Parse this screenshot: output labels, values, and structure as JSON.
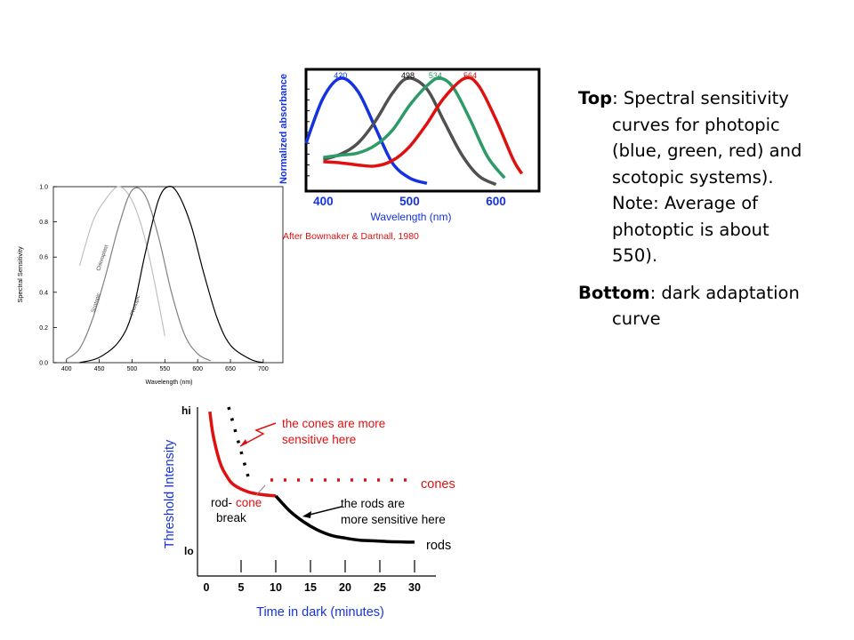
{
  "notes": {
    "top_heading": "Top",
    "top_text": ": Spectral sensitivity curves for photopic (blue, green, red) and scotopic systems). Note: Average of photoptic is about 550).",
    "bottom_heading": "Bottom",
    "bottom_text": ": dark adaptation curve"
  },
  "colors": {
    "blue": "#1432e0",
    "green": "#2e9a68",
    "red": "#e01010",
    "gray": "#505050"
  },
  "chart_data": [
    {
      "type": "line",
      "ylabel": "Normalized absorbance",
      "xlabel": "Wavelength (nm)",
      "xlim": [
        380,
        650
      ],
      "ylim": [
        0,
        1
      ],
      "xticks": [
        "400",
        "500",
        "600"
      ],
      "credit": "After Bowmaker & Dartnall, 1980",
      "series": [
        {
          "name": "420",
          "color": "#1432e0",
          "x": [
            380,
            400,
            420,
            440,
            460,
            480,
            500,
            520
          ],
          "y": [
            0.4,
            0.82,
            1.0,
            0.88,
            0.55,
            0.22,
            0.08,
            0.03
          ]
        },
        {
          "name": "498",
          "color": "#505050",
          "x": [
            400,
            420,
            440,
            460,
            480,
            498,
            520,
            540,
            560,
            580,
            600
          ],
          "y": [
            0.25,
            0.3,
            0.4,
            0.6,
            0.86,
            1.0,
            0.9,
            0.6,
            0.3,
            0.1,
            0.02
          ]
        },
        {
          "name": "534",
          "color": "#2e9a68",
          "x": [
            400,
            420,
            440,
            460,
            480,
            500,
            520,
            534,
            550,
            570,
            590,
            610
          ],
          "y": [
            0.27,
            0.29,
            0.31,
            0.38,
            0.52,
            0.75,
            0.93,
            1.0,
            0.92,
            0.62,
            0.28,
            0.08
          ]
        },
        {
          "name": "564",
          "color": "#e01010",
          "x": [
            400,
            420,
            440,
            460,
            480,
            500,
            520,
            540,
            564,
            580,
            600,
            620,
            630
          ],
          "y": [
            0.23,
            0.22,
            0.2,
            0.19,
            0.24,
            0.37,
            0.58,
            0.82,
            1.0,
            0.93,
            0.62,
            0.25,
            0.12
          ]
        }
      ]
    },
    {
      "type": "line",
      "ylabel": "Spectral Sensitivity",
      "xlabel": "Wavelength (nm)",
      "xlim": [
        380,
        730
      ],
      "ylim": [
        0,
        1
      ],
      "xticks": [
        "400",
        "450",
        "500",
        "550",
        "600",
        "650",
        "700"
      ],
      "yticks": [
        "0.0",
        "0.2",
        "0.4",
        "0.6",
        "0.8",
        "1.0"
      ],
      "series": [
        {
          "name": "Chloroplast",
          "color": "#c0c0c0",
          "x": [
            420,
            440,
            460,
            480,
            500,
            520,
            540,
            550
          ],
          "y": [
            0.55,
            0.8,
            0.93,
            1.0,
            0.92,
            0.7,
            0.35,
            0.15
          ]
        },
        {
          "name": "Scotopic",
          "color": "#808080",
          "x": [
            400,
            420,
            440,
            460,
            480,
            500,
            520,
            540,
            560,
            580,
            600,
            620
          ],
          "y": [
            0.02,
            0.08,
            0.25,
            0.5,
            0.78,
            0.98,
            0.95,
            0.72,
            0.4,
            0.16,
            0.05,
            0.01
          ]
        },
        {
          "name": "Photopic",
          "color": "#000000",
          "x": [
            420,
            450,
            480,
            500,
            520,
            540,
            555,
            570,
            590,
            610,
            630,
            650,
            680,
            700
          ],
          "y": [
            0.0,
            0.03,
            0.12,
            0.28,
            0.62,
            0.92,
            1.0,
            0.96,
            0.78,
            0.5,
            0.25,
            0.1,
            0.02,
            0.0
          ]
        }
      ]
    },
    {
      "type": "line",
      "ylabel": "Threshold Intensity",
      "xlabel": "Time in dark (minutes)",
      "xticks": [
        "0",
        "5",
        "10",
        "15",
        "20",
        "25",
        "30"
      ],
      "ytick_hi": "hi",
      "ytick_lo": "lo",
      "annotations": {
        "cones_sensitive": "the cones are more sensitive here",
        "cones_sensitive_l1": "the cones are more",
        "cones_sensitive_l2": "sensitive here",
        "rods_sensitive_l1": "the rods are",
        "rods_sensitive_l2": "more sensitive here",
        "rod_break_l1a": "rod-",
        "rod_break_l1b": "cone",
        "rod_break_l2": "break",
        "cones": "cones",
        "rods": "rods"
      },
      "series": [
        {
          "name": "cones",
          "color": "#e01010",
          "x": [
            0.5,
            1,
            2,
            3,
            4,
            6,
            8,
            10
          ],
          "y": [
            0.98,
            0.8,
            0.6,
            0.5,
            0.44,
            0.39,
            0.37,
            0.36
          ]
        },
        {
          "name": "rods",
          "color": "#000000",
          "x": [
            10,
            12,
            14,
            16,
            18,
            20,
            22,
            24,
            26,
            28,
            30
          ],
          "y": [
            0.36,
            0.25,
            0.17,
            0.11,
            0.07,
            0.05,
            0.035,
            0.03,
            0.025,
            0.022,
            0.02
          ]
        }
      ]
    }
  ]
}
